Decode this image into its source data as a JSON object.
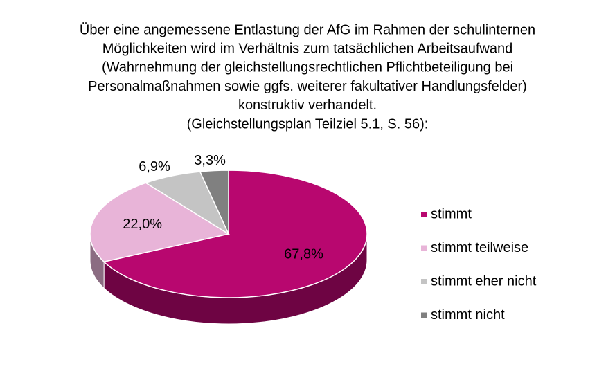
{
  "chart_data": {
    "type": "pie",
    "title": [
      "Über eine angemessene Entlastung der AfG im Rahmen der schulinternen",
      "Möglichkeiten wird im Verhältnis zum tatsächlichen Arbeitsaufwand",
      "(Wahrnehmung der gleichstellungsrechtlichen Pflichtbeteiligung bei",
      "Personalmaßnahmen sowie ggfs. weiterer fakultativer Handlungsfelder)",
      "konstruktiv verhandelt.",
      "(Gleichstellungsplan Teilziel 5.1, S. 56):"
    ],
    "categories": [
      "stimmt",
      "stimmt teilweise",
      "stimmt eher nicht",
      "stimmt nicht"
    ],
    "values": [
      67.8,
      22.0,
      6.9,
      3.3
    ],
    "value_labels": [
      "67,8%",
      "22,0%",
      "6,9%",
      "3,3%"
    ],
    "colors": [
      "#b8076f",
      "#e8b4d8",
      "#c4c4c4",
      "#808080"
    ],
    "legend": "right"
  }
}
